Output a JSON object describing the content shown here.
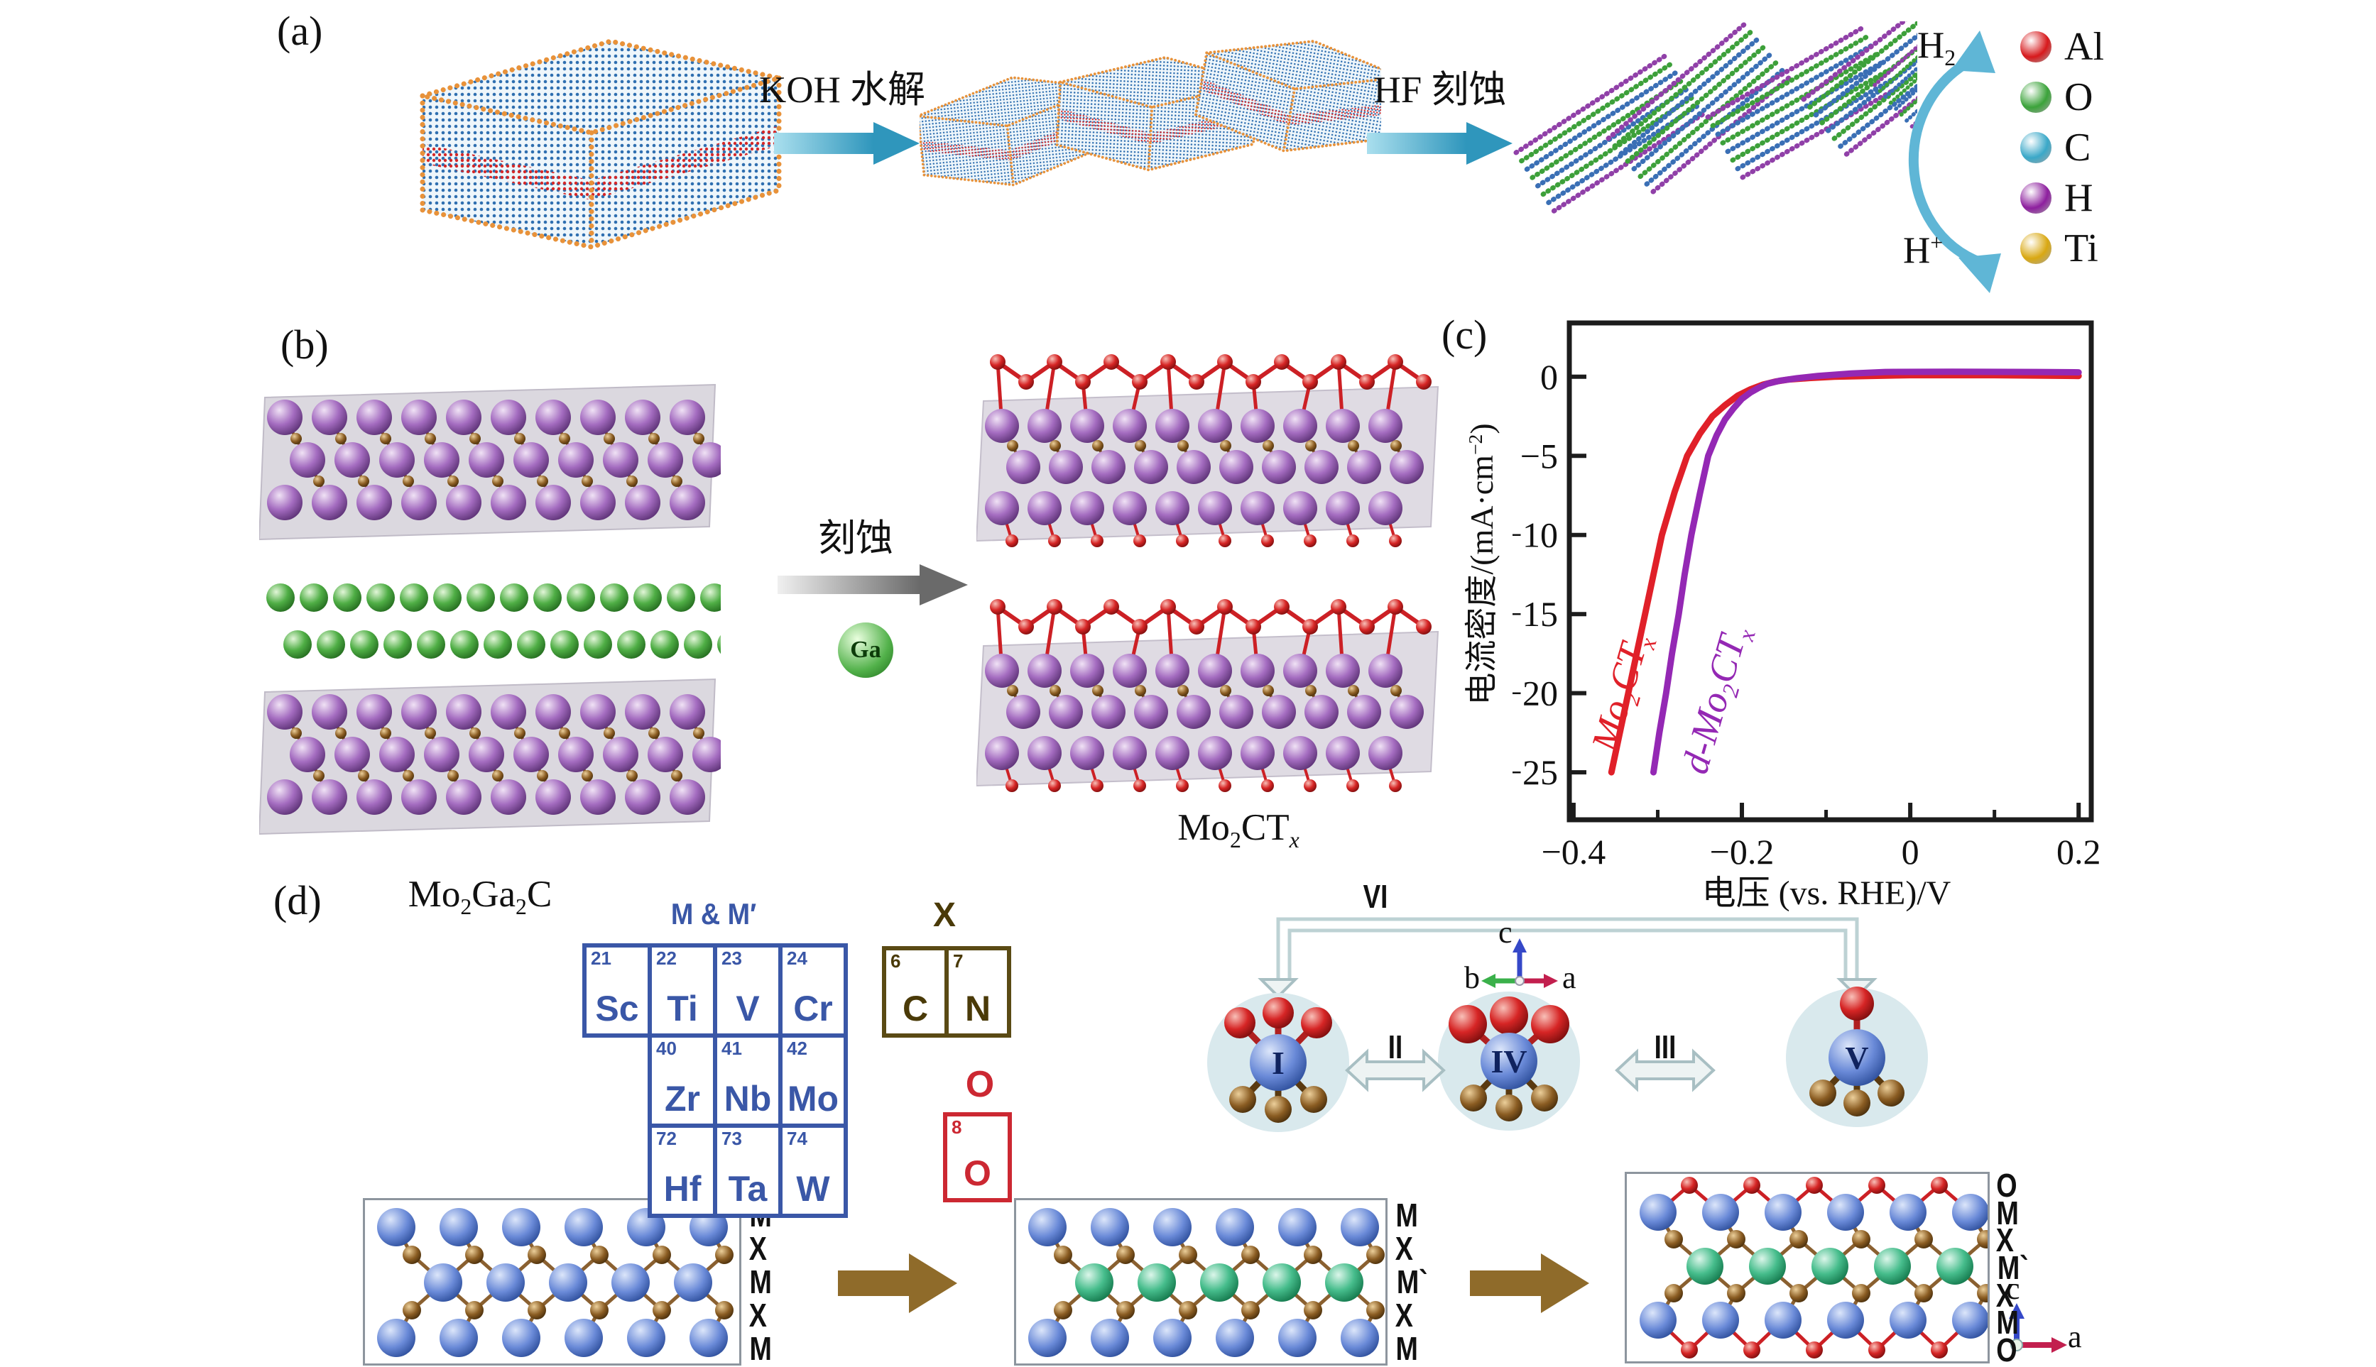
{
  "figure": {
    "panel_a_label": "(a)",
    "panel_b_label": "(b)",
    "panel_c_label": "(c)",
    "panel_d_label": "(d)"
  },
  "panel_a": {
    "step1_label": "KOH 水解",
    "step2_label": "HF 刻蚀",
    "h2": {
      "base": "H",
      "sub": "2"
    },
    "h_plus": {
      "base": "H",
      "sup": "+"
    },
    "legend": [
      {
        "symbol": "Al",
        "color": "#d7191c"
      },
      {
        "symbol": "O",
        "color": "#3ba33a"
      },
      {
        "symbol": "C",
        "color": "#3aa8c8"
      },
      {
        "symbol": "H",
        "color": "#8d1f9e"
      },
      {
        "symbol": "Ti",
        "color": "#d9a812"
      }
    ]
  },
  "panel_b": {
    "etch_label": "刻蚀",
    "ga_label": "Ga",
    "reactant": {
      "p1": "Mo",
      "s1": "2",
      "p2": "Ga",
      "s2": "2",
      "p3": "C"
    },
    "product": {
      "p1": "Mo",
      "s1": "2",
      "p2": "CT",
      "s2": "x"
    }
  },
  "chart_data": {
    "type": "line",
    "title": "",
    "xlabel": "电压 (vs. RHE)/V",
    "ylabel": "电流密度/(mA·cm⁻²)",
    "ylabel_parts": {
      "pre": "电流密度/(mA·cm",
      "sup": "−2",
      "post": ")"
    },
    "xlim": [
      -0.405,
      0.215
    ],
    "ylim": [
      -28,
      3.4
    ],
    "grid": false,
    "xticks": [
      {
        "v": -0.4,
        "label": "−0.4"
      },
      {
        "v": -0.2,
        "label": "−0.2"
      },
      {
        "v": 0,
        "label": "0"
      },
      {
        "v": 0.2,
        "label": "0.2"
      }
    ],
    "xminor": [
      -0.3,
      -0.1,
      0.1
    ],
    "yticks": [
      {
        "v": 0,
        "label": "0"
      },
      {
        "v": -5,
        "label": "−5"
      },
      {
        "v": -10,
        "label": "−10"
      },
      {
        "v": -15,
        "label": "−15"
      },
      {
        "v": -20,
        "label": "−20"
      },
      {
        "v": -25,
        "label": "−25"
      }
    ],
    "series": [
      {
        "name": "Mo2CTx",
        "color": "#e02029",
        "points": [
          [
            -0.355,
            -25
          ],
          [
            -0.345,
            -22.5
          ],
          [
            -0.335,
            -20
          ],
          [
            -0.325,
            -17.5
          ],
          [
            -0.315,
            -15
          ],
          [
            -0.305,
            -12.5
          ],
          [
            -0.295,
            -10
          ],
          [
            -0.28,
            -7.3
          ],
          [
            -0.265,
            -5
          ],
          [
            -0.25,
            -3.6
          ],
          [
            -0.235,
            -2.5
          ],
          [
            -0.22,
            -1.8
          ],
          [
            -0.205,
            -1.2
          ],
          [
            -0.19,
            -0.8
          ],
          [
            -0.175,
            -0.5
          ],
          [
            -0.16,
            -0.3
          ],
          [
            -0.145,
            -0.18
          ],
          [
            -0.12,
            -0.08
          ],
          [
            -0.09,
            0
          ],
          [
            -0.05,
            0.05
          ],
          [
            0,
            0.1
          ],
          [
            0.1,
            0.1
          ],
          [
            0.2,
            0.05
          ]
        ]
      },
      {
        "name": "d-Mo2CTx",
        "color": "#9428b4",
        "points": [
          [
            -0.305,
            -25
          ],
          [
            -0.298,
            -22.5
          ],
          [
            -0.29,
            -20
          ],
          [
            -0.283,
            -17.5
          ],
          [
            -0.275,
            -15
          ],
          [
            -0.268,
            -12.5
          ],
          [
            -0.26,
            -10
          ],
          [
            -0.25,
            -7.4
          ],
          [
            -0.24,
            -5
          ],
          [
            -0.23,
            -3.7
          ],
          [
            -0.22,
            -2.7
          ],
          [
            -0.21,
            -2
          ],
          [
            -0.2,
            -1.4
          ],
          [
            -0.19,
            -1
          ],
          [
            -0.18,
            -0.7
          ],
          [
            -0.17,
            -0.45
          ],
          [
            -0.155,
            -0.25
          ],
          [
            -0.135,
            -0.1
          ],
          [
            -0.11,
            0.05
          ],
          [
            -0.07,
            0.2
          ],
          [
            -0.03,
            0.3
          ],
          [
            0.05,
            0.32
          ],
          [
            0.15,
            0.3
          ],
          [
            0.2,
            0.28
          ]
        ]
      }
    ],
    "series_labels": {
      "red": {
        "p1": "Mo",
        "s1": "2",
        "p2": "CT",
        "s2": "x"
      },
      "purple": {
        "p0": "d",
        "p1": "-Mo",
        "s1": "2",
        "p2": "CT",
        "s2": "x"
      }
    }
  },
  "panel_d": {
    "m_header": "M & M′",
    "x_header": "X",
    "o_header": "O",
    "m_elements": [
      {
        "num": "21",
        "sym": "Sc",
        "row": 0,
        "col": 0
      },
      {
        "num": "22",
        "sym": "Ti",
        "row": 0,
        "col": 1
      },
      {
        "num": "23",
        "sym": "V",
        "row": 0,
        "col": 2
      },
      {
        "num": "24",
        "sym": "Cr",
        "row": 0,
        "col": 3
      },
      {
        "num": "40",
        "sym": "Zr",
        "row": 1,
        "col": 1
      },
      {
        "num": "41",
        "sym": "Nb",
        "row": 1,
        "col": 2
      },
      {
        "num": "42",
        "sym": "Mo",
        "row": 1,
        "col": 3
      },
      {
        "num": "72",
        "sym": "Hf",
        "row": 2,
        "col": 1
      },
      {
        "num": "73",
        "sym": "Ta",
        "row": 2,
        "col": 2
      },
      {
        "num": "74",
        "sym": "W",
        "row": 2,
        "col": 3
      }
    ],
    "x_elements": [
      {
        "num": "6",
        "sym": "C"
      },
      {
        "num": "7",
        "sym": "N"
      }
    ],
    "o_element": {
      "num": "8",
      "sym": "O"
    },
    "site_labels": {
      "left": "I",
      "middle": "IV",
      "right": "V"
    },
    "transition_labels": {
      "vi": "VI",
      "ii": "II",
      "iii": "III"
    },
    "axis_bca": {
      "b": "b",
      "c": "c",
      "a": "a"
    },
    "axis_ca": {
      "c": "c",
      "a": "a"
    },
    "stack1_labels": [
      "M",
      "X",
      "M",
      "X",
      "M"
    ],
    "stack2_labels": [
      "M",
      "X",
      "M`",
      "X",
      "M"
    ],
    "stack3_labels": [
      "O",
      "M",
      "X",
      "M`",
      "X",
      "M",
      "O"
    ]
  }
}
